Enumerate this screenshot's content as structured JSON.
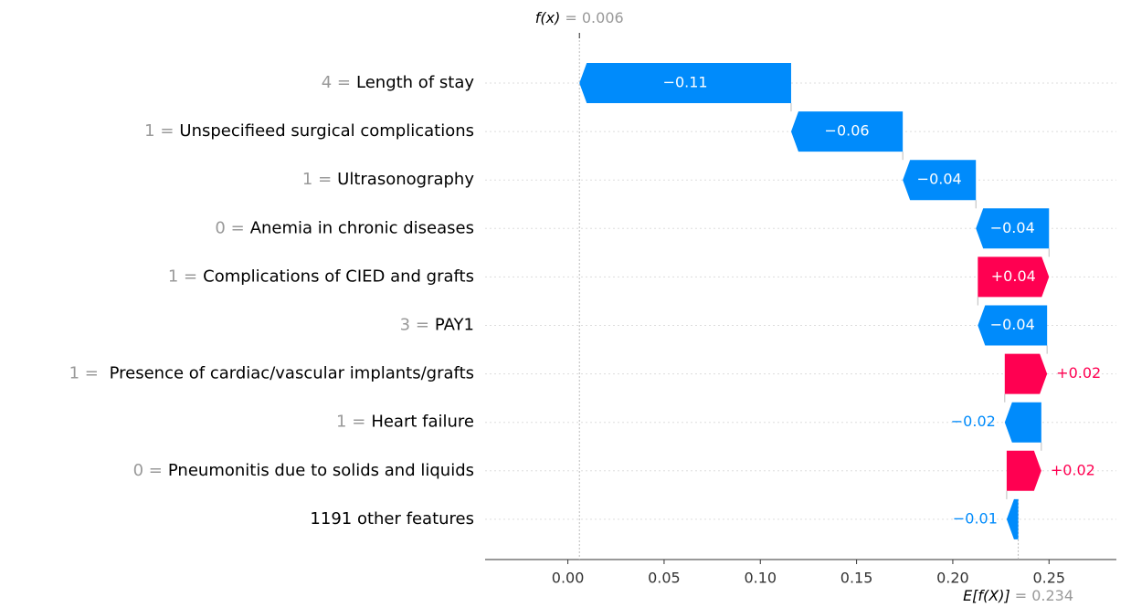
{
  "chart_data": {
    "type": "waterfall",
    "base": {
      "label": "E[f(X)]",
      "value": 0.234,
      "value_label": "= 0.234"
    },
    "output": {
      "label": "f(x)",
      "value": 0.006,
      "value_label": "= 0.006"
    },
    "feature_values": [
      "4 =",
      "1 =",
      "1 =",
      "0 =",
      "1 =",
      "3 =",
      "1 =",
      "1 =",
      "0 =",
      null
    ],
    "categories": [
      "Length of stay",
      "Unspecifieed surgical complications",
      "Ultrasonography",
      "Anemia in chronic diseases",
      "Complications of CIED and grafts",
      "PAY1",
      " Presence of cardiac/vascular implants/grafts",
      "Heart failure",
      "Pneumonitis due to solids and liquids",
      "1191 other features"
    ],
    "values": [
      -0.11,
      -0.058,
      -0.038,
      -0.038,
      0.037,
      -0.036,
      0.022,
      -0.019,
      0.018,
      -0.006
    ],
    "value_labels": [
      "−0.11",
      "−0.06",
      "−0.04",
      "−0.04",
      "+0.04",
      "−0.04",
      "+0.02",
      "−0.02",
      "+0.02",
      "−0.01"
    ],
    "positive_color": "#ff0051",
    "negative_color": "#008bfb",
    "xlim": [
      -0.043,
      0.285
    ],
    "xticks": [
      {
        "value": 0,
        "label": "0.00"
      },
      {
        "value": 0.05,
        "label": "0.05"
      },
      {
        "value": 0.1,
        "label": "0.10"
      },
      {
        "value": 0.15,
        "label": "0.15"
      },
      {
        "value": 0.2,
        "label": "0.20"
      },
      {
        "value": 0.25,
        "label": "0.25"
      }
    ]
  }
}
